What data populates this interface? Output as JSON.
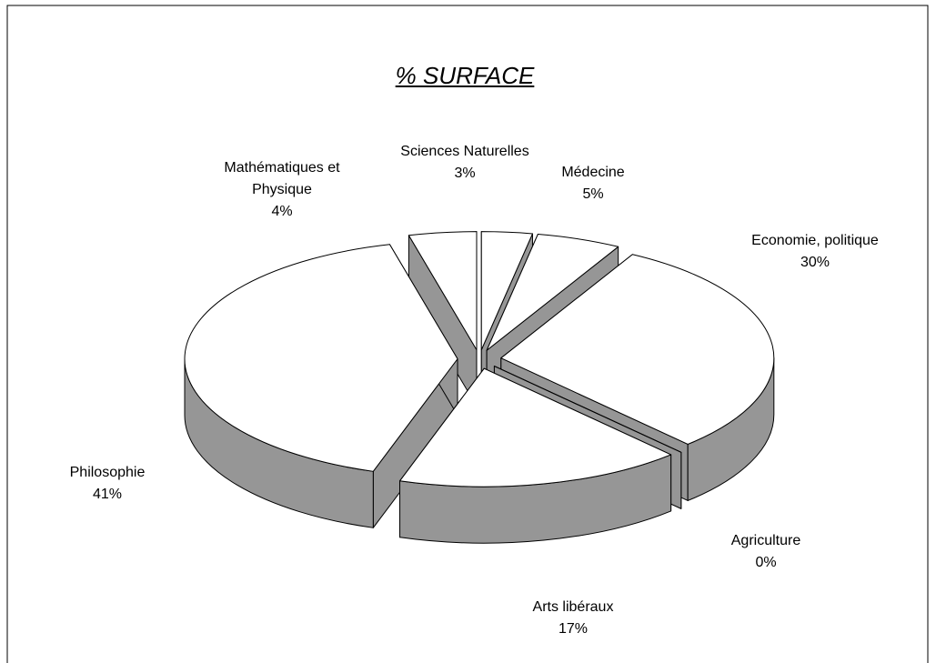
{
  "chart_data": {
    "type": "pie3d",
    "title": "% SURFACE",
    "categories": [
      "Sciences Naturelles",
      "Médecine",
      "Economie, politique",
      "Agriculture",
      "Arts libéraux",
      "Philosophie",
      "Mathématiques et Physique"
    ],
    "values": [
      3,
      5,
      30,
      0,
      17,
      41,
      4
    ],
    "value_labels": [
      "3%",
      "5%",
      "30%",
      "0%",
      "17%",
      "41%",
      "4%"
    ],
    "top_color": "#ffffff",
    "side_color": "#969696"
  }
}
